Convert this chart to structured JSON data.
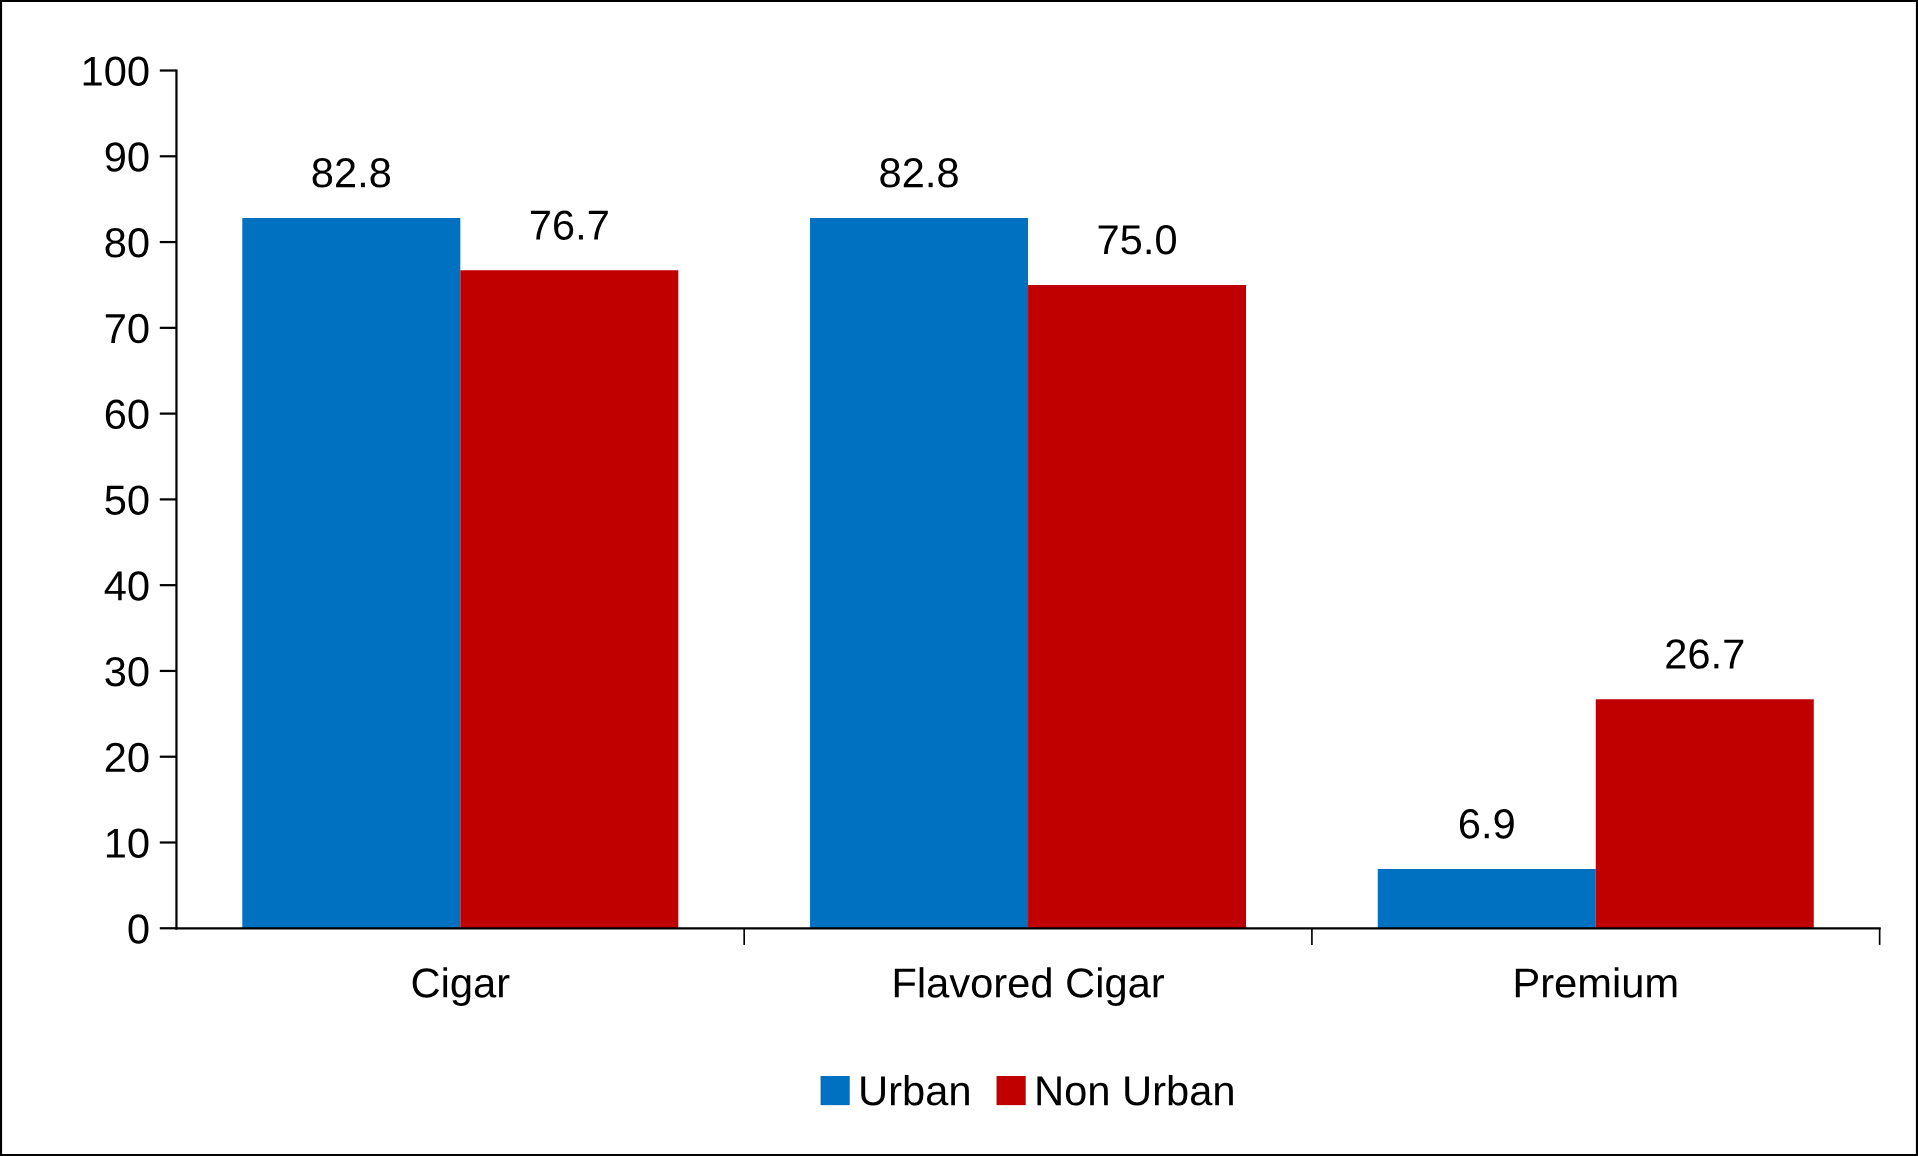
{
  "chart_data": {
    "type": "bar",
    "categories": [
      "Cigar",
      "Flavored Cigar",
      "Premium"
    ],
    "series": [
      {
        "name": "Urban",
        "color": "#0070c0",
        "values": [
          82.8,
          82.8,
          6.9
        ],
        "value_labels": [
          "82.8",
          "82.8",
          "6.9"
        ]
      },
      {
        "name": "Non Urban",
        "color": "#c00000",
        "values": [
          76.7,
          75.0,
          26.7
        ],
        "value_labels": [
          "76.7",
          "75.0",
          "26.7"
        ]
      }
    ],
    "ylim": [
      0,
      100
    ],
    "yticks": [
      0,
      10,
      20,
      30,
      40,
      50,
      60,
      70,
      80,
      90,
      100
    ],
    "grid": false,
    "legend": "bottom"
  }
}
